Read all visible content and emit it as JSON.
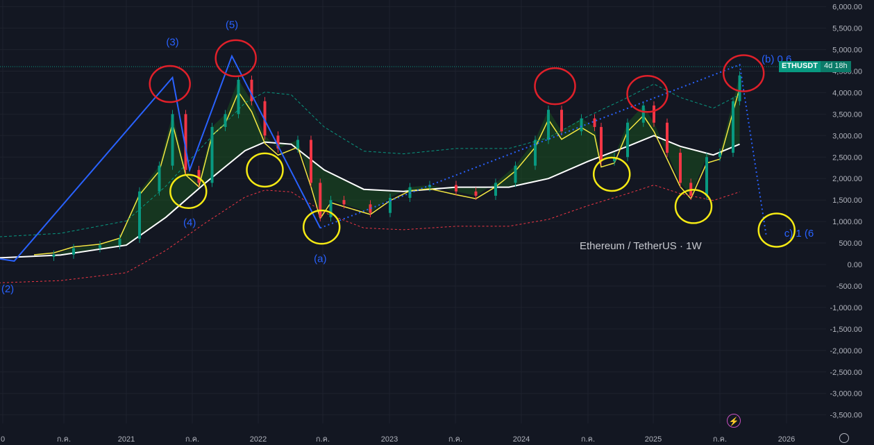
{
  "chart_data": {
    "type": "line",
    "title": "Ethereum / TetherUS · 1W",
    "symbol": "ETHUSDT",
    "timer": "4d 18h",
    "x_labels": [
      "0",
      "ก.ค.",
      "2021",
      "ก.ค.",
      "2022",
      "ก.ค.",
      "2023",
      "ก.ค.",
      "2024",
      "ก.ค.",
      "2025",
      "ก.ค.",
      "2026"
    ],
    "y_ticks": [
      "6,000.00",
      "5,500.00",
      "5,000.00",
      "4,500.00",
      "4,000.00",
      "3,500.00",
      "3,000.00",
      "2,500.00",
      "2,000.00",
      "1,500.00",
      "1,000.00",
      "500.00",
      "0.00",
      "-500.00",
      "-1,000.00",
      "-1,500.00",
      "-2,000.00",
      "-2,500.00",
      "-3,000.00",
      "-3,500.00"
    ],
    "ylim": [
      -3800,
      6000
    ],
    "grid": true,
    "wave_labels": [
      "(2)",
      "(3)",
      "(4)",
      "(5)",
      "(a)",
      "(b) 0.6",
      "c) 1 (6"
    ],
    "series": [
      {
        "name": "ETHUSDT",
        "color": "#d1d4dc",
        "points": [
          [
            2020.3,
            180
          ],
          [
            2020.45,
            230
          ],
          [
            2020.6,
            380
          ],
          [
            2020.8,
            450
          ],
          [
            2020.95,
            600
          ],
          [
            2021.1,
            1700
          ],
          [
            2021.25,
            2300
          ],
          [
            2021.35,
            3500
          ],
          [
            2021.45,
            2200
          ],
          [
            2021.55,
            1900
          ],
          [
            2021.65,
            3200
          ],
          [
            2021.75,
            3500
          ],
          [
            2021.85,
            4300
          ],
          [
            2021.95,
            3800
          ],
          [
            2022.05,
            3000
          ],
          [
            2022.15,
            2700
          ],
          [
            2022.3,
            2900
          ],
          [
            2022.4,
            1900
          ],
          [
            2022.47,
            1100
          ],
          [
            2022.55,
            1500
          ],
          [
            2022.65,
            1400
          ],
          [
            2022.85,
            1200
          ],
          [
            2023.0,
            1550
          ],
          [
            2023.15,
            1800
          ],
          [
            2023.3,
            1850
          ],
          [
            2023.5,
            1700
          ],
          [
            2023.65,
            1600
          ],
          [
            2023.8,
            1900
          ],
          [
            2023.95,
            2300
          ],
          [
            2024.1,
            2900
          ],
          [
            2024.2,
            3600
          ],
          [
            2024.3,
            3100
          ],
          [
            2024.45,
            3400
          ],
          [
            2024.55,
            3200
          ],
          [
            2024.6,
            2400
          ],
          [
            2024.7,
            2500
          ],
          [
            2024.8,
            3300
          ],
          [
            2024.92,
            3700
          ],
          [
            2025.0,
            3300
          ],
          [
            2025.1,
            2600
          ],
          [
            2025.2,
            1900
          ],
          [
            2025.28,
            1600
          ],
          [
            2025.4,
            2500
          ],
          [
            2025.5,
            2600
          ],
          [
            2025.6,
            3800
          ],
          [
            2025.65,
            4400
          ]
        ]
      },
      {
        "name": "",
        "color": "#ffffff",
        "points": [
          [
            2020.0,
            150
          ],
          [
            2020.5,
            220
          ],
          [
            2021.0,
            450
          ],
          [
            2021.3,
            1100
          ],
          [
            2021.6,
            1900
          ],
          [
            2021.9,
            2650
          ],
          [
            2022.05,
            2850
          ],
          [
            2022.25,
            2800
          ],
          [
            2022.5,
            2200
          ],
          [
            2022.8,
            1750
          ],
          [
            2023.1,
            1700
          ],
          [
            2023.5,
            1800
          ],
          [
            2023.9,
            1800
          ],
          [
            2024.2,
            2000
          ],
          [
            2024.5,
            2400
          ],
          [
            2024.8,
            2750
          ],
          [
            2025.0,
            3000
          ],
          [
            2025.2,
            2750
          ],
          [
            2025.45,
            2550
          ],
          [
            2025.65,
            2800
          ]
        ]
      }
    ],
    "wave_path": [
      [
        2020.0,
        150
      ],
      [
        2020.15,
        80
      ],
      [
        2021.35,
        4350
      ],
      [
        2021.48,
        2200
      ],
      [
        2021.8,
        4850
      ],
      [
        2022.47,
        850
      ]
    ],
    "wave_projection": [
      [
        2022.47,
        850
      ],
      [
        2025.65,
        4650
      ],
      [
        2025.85,
        700
      ]
    ],
    "red_circles": [
      [
        2021.33,
        4200
      ],
      [
        2021.83,
        4800
      ],
      [
        2024.25,
        4150
      ],
      [
        2024.95,
        3970
      ],
      [
        2025.68,
        4450
      ]
    ],
    "yellow_circles": [
      [
        2021.47,
        1700
      ],
      [
        2022.05,
        2200
      ],
      [
        2022.48,
        870
      ],
      [
        2024.68,
        2100
      ],
      [
        2025.3,
        1350
      ],
      [
        2025.93,
        800
      ]
    ],
    "colors": {
      "bull": "#089981",
      "bear": "#f23645",
      "wave": "#2962ff",
      "ma_yellow": "#f5e942"
    }
  }
}
